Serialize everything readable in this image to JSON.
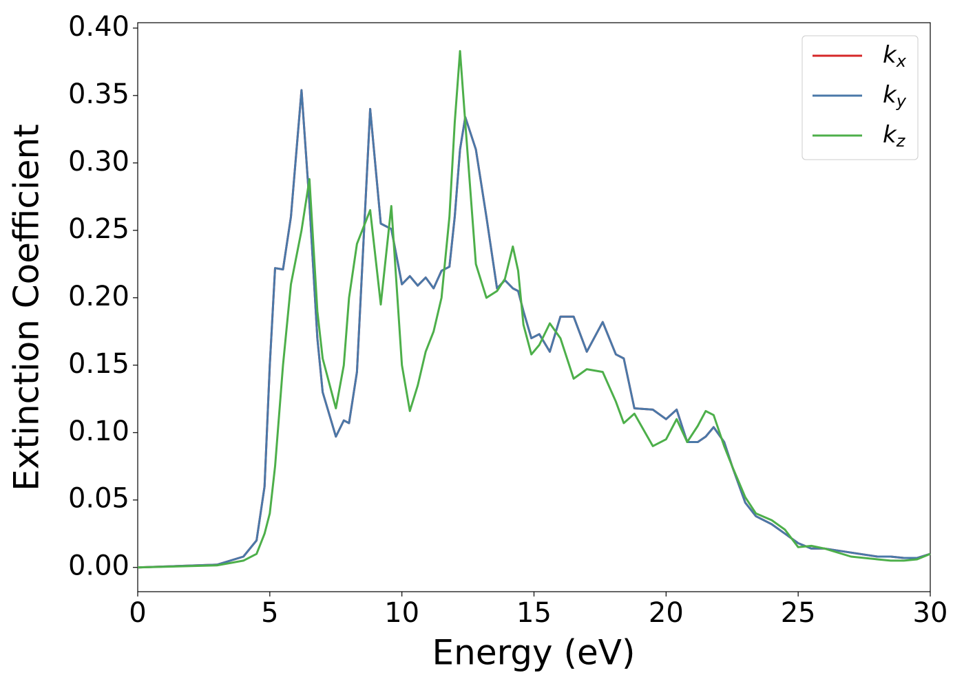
{
  "chart_data": {
    "type": "line",
    "xlabel": "Energy (eV)",
    "ylabel": "Extinction Coefficient",
    "x": [
      0,
      3,
      4,
      4.5,
      4.8,
      5.0,
      5.2,
      5.5,
      5.8,
      6.2,
      6.5,
      6.8,
      7.0,
      7.5,
      7.8,
      8.0,
      8.3,
      8.8,
      9.2,
      9.6,
      10.0,
      10.3,
      10.6,
      10.9,
      11.2,
      11.5,
      11.8,
      12.0,
      12.2,
      12.4,
      12.8,
      13.2,
      13.6,
      13.9,
      14.2,
      14.4,
      14.6,
      14.9,
      15.2,
      15.6,
      16.0,
      16.5,
      17.0,
      17.6,
      18.1,
      18.4,
      18.8,
      19.5,
      20.0,
      20.4,
      20.8,
      21.2,
      21.5,
      21.8,
      22.2,
      22.5,
      23,
      23.4,
      24,
      24.5,
      25,
      25.5,
      26,
      27,
      28,
      28.5,
      29,
      29.5,
      30
    ],
    "series": [
      {
        "name": "kx",
        "color": "#d62728",
        "values": [
          0,
          0.002,
          0.008,
          0.02,
          0.06,
          0.15,
          0.222,
          0.221,
          0.26,
          0.354,
          0.27,
          0.17,
          0.13,
          0.097,
          0.109,
          0.107,
          0.145,
          0.34,
          0.255,
          0.251,
          0.21,
          0.216,
          0.209,
          0.215,
          0.207,
          0.22,
          0.223,
          0.26,
          0.31,
          0.334,
          0.31,
          0.26,
          0.207,
          0.213,
          0.207,
          0.205,
          0.19,
          0.17,
          0.173,
          0.16,
          0.186,
          0.186,
          0.16,
          0.182,
          0.158,
          0.155,
          0.118,
          0.117,
          0.11,
          0.117,
          0.093,
          0.093,
          0.097,
          0.104,
          0.093,
          0.075,
          0.048,
          0.038,
          0.032,
          0.025,
          0.018,
          0.014,
          0.014,
          0.011,
          0.008,
          0.008,
          0.007,
          0.007,
          0.01
        ]
      },
      {
        "name": "ky",
        "color": "#4a78a8",
        "values": [
          0,
          0.002,
          0.008,
          0.02,
          0.06,
          0.15,
          0.222,
          0.221,
          0.26,
          0.354,
          0.27,
          0.17,
          0.13,
          0.097,
          0.109,
          0.107,
          0.145,
          0.34,
          0.255,
          0.251,
          0.21,
          0.216,
          0.209,
          0.215,
          0.207,
          0.22,
          0.223,
          0.26,
          0.31,
          0.334,
          0.31,
          0.26,
          0.207,
          0.213,
          0.207,
          0.205,
          0.19,
          0.17,
          0.173,
          0.16,
          0.186,
          0.186,
          0.16,
          0.182,
          0.158,
          0.155,
          0.118,
          0.117,
          0.11,
          0.117,
          0.093,
          0.093,
          0.097,
          0.104,
          0.093,
          0.075,
          0.048,
          0.038,
          0.032,
          0.025,
          0.018,
          0.014,
          0.014,
          0.011,
          0.008,
          0.008,
          0.007,
          0.007,
          0.01
        ]
      },
      {
        "name": "kz",
        "color": "#4daf4a",
        "values": [
          0,
          0.0015,
          0.005,
          0.01,
          0.025,
          0.04,
          0.075,
          0.15,
          0.21,
          0.25,
          0.288,
          0.19,
          0.155,
          0.118,
          0.15,
          0.2,
          0.24,
          0.265,
          0.195,
          0.268,
          0.15,
          0.116,
          0.135,
          0.16,
          0.175,
          0.2,
          0.26,
          0.33,
          0.383,
          0.33,
          0.225,
          0.2,
          0.205,
          0.214,
          0.238,
          0.22,
          0.18,
          0.158,
          0.165,
          0.181,
          0.17,
          0.14,
          0.147,
          0.145,
          0.123,
          0.107,
          0.114,
          0.09,
          0.095,
          0.11,
          0.093,
          0.105,
          0.116,
          0.113,
          0.09,
          0.075,
          0.052,
          0.04,
          0.035,
          0.028,
          0.015,
          0.016,
          0.014,
          0.008,
          0.006,
          0.005,
          0.005,
          0.006,
          0.01
        ]
      }
    ],
    "xlim": [
      0,
      30
    ],
    "xticks": [
      0,
      5,
      10,
      15,
      20,
      25,
      30
    ],
    "ylim": [
      -0.018,
      0.404
    ],
    "yticks": [
      {
        "value": 0,
        "label": "0.00"
      },
      {
        "value": 0.05,
        "label": "0.05"
      },
      {
        "value": 0.1,
        "label": "0.10"
      },
      {
        "value": 0.15,
        "label": "0.15"
      },
      {
        "value": 0.2,
        "label": "0.20"
      },
      {
        "value": 0.25,
        "label": "0.25"
      },
      {
        "value": 0.3,
        "label": "0.30"
      },
      {
        "value": 0.35,
        "label": "0.35"
      },
      {
        "value": 0.4,
        "label": "0.40"
      }
    ],
    "legend": "upper right",
    "grid": false
  }
}
